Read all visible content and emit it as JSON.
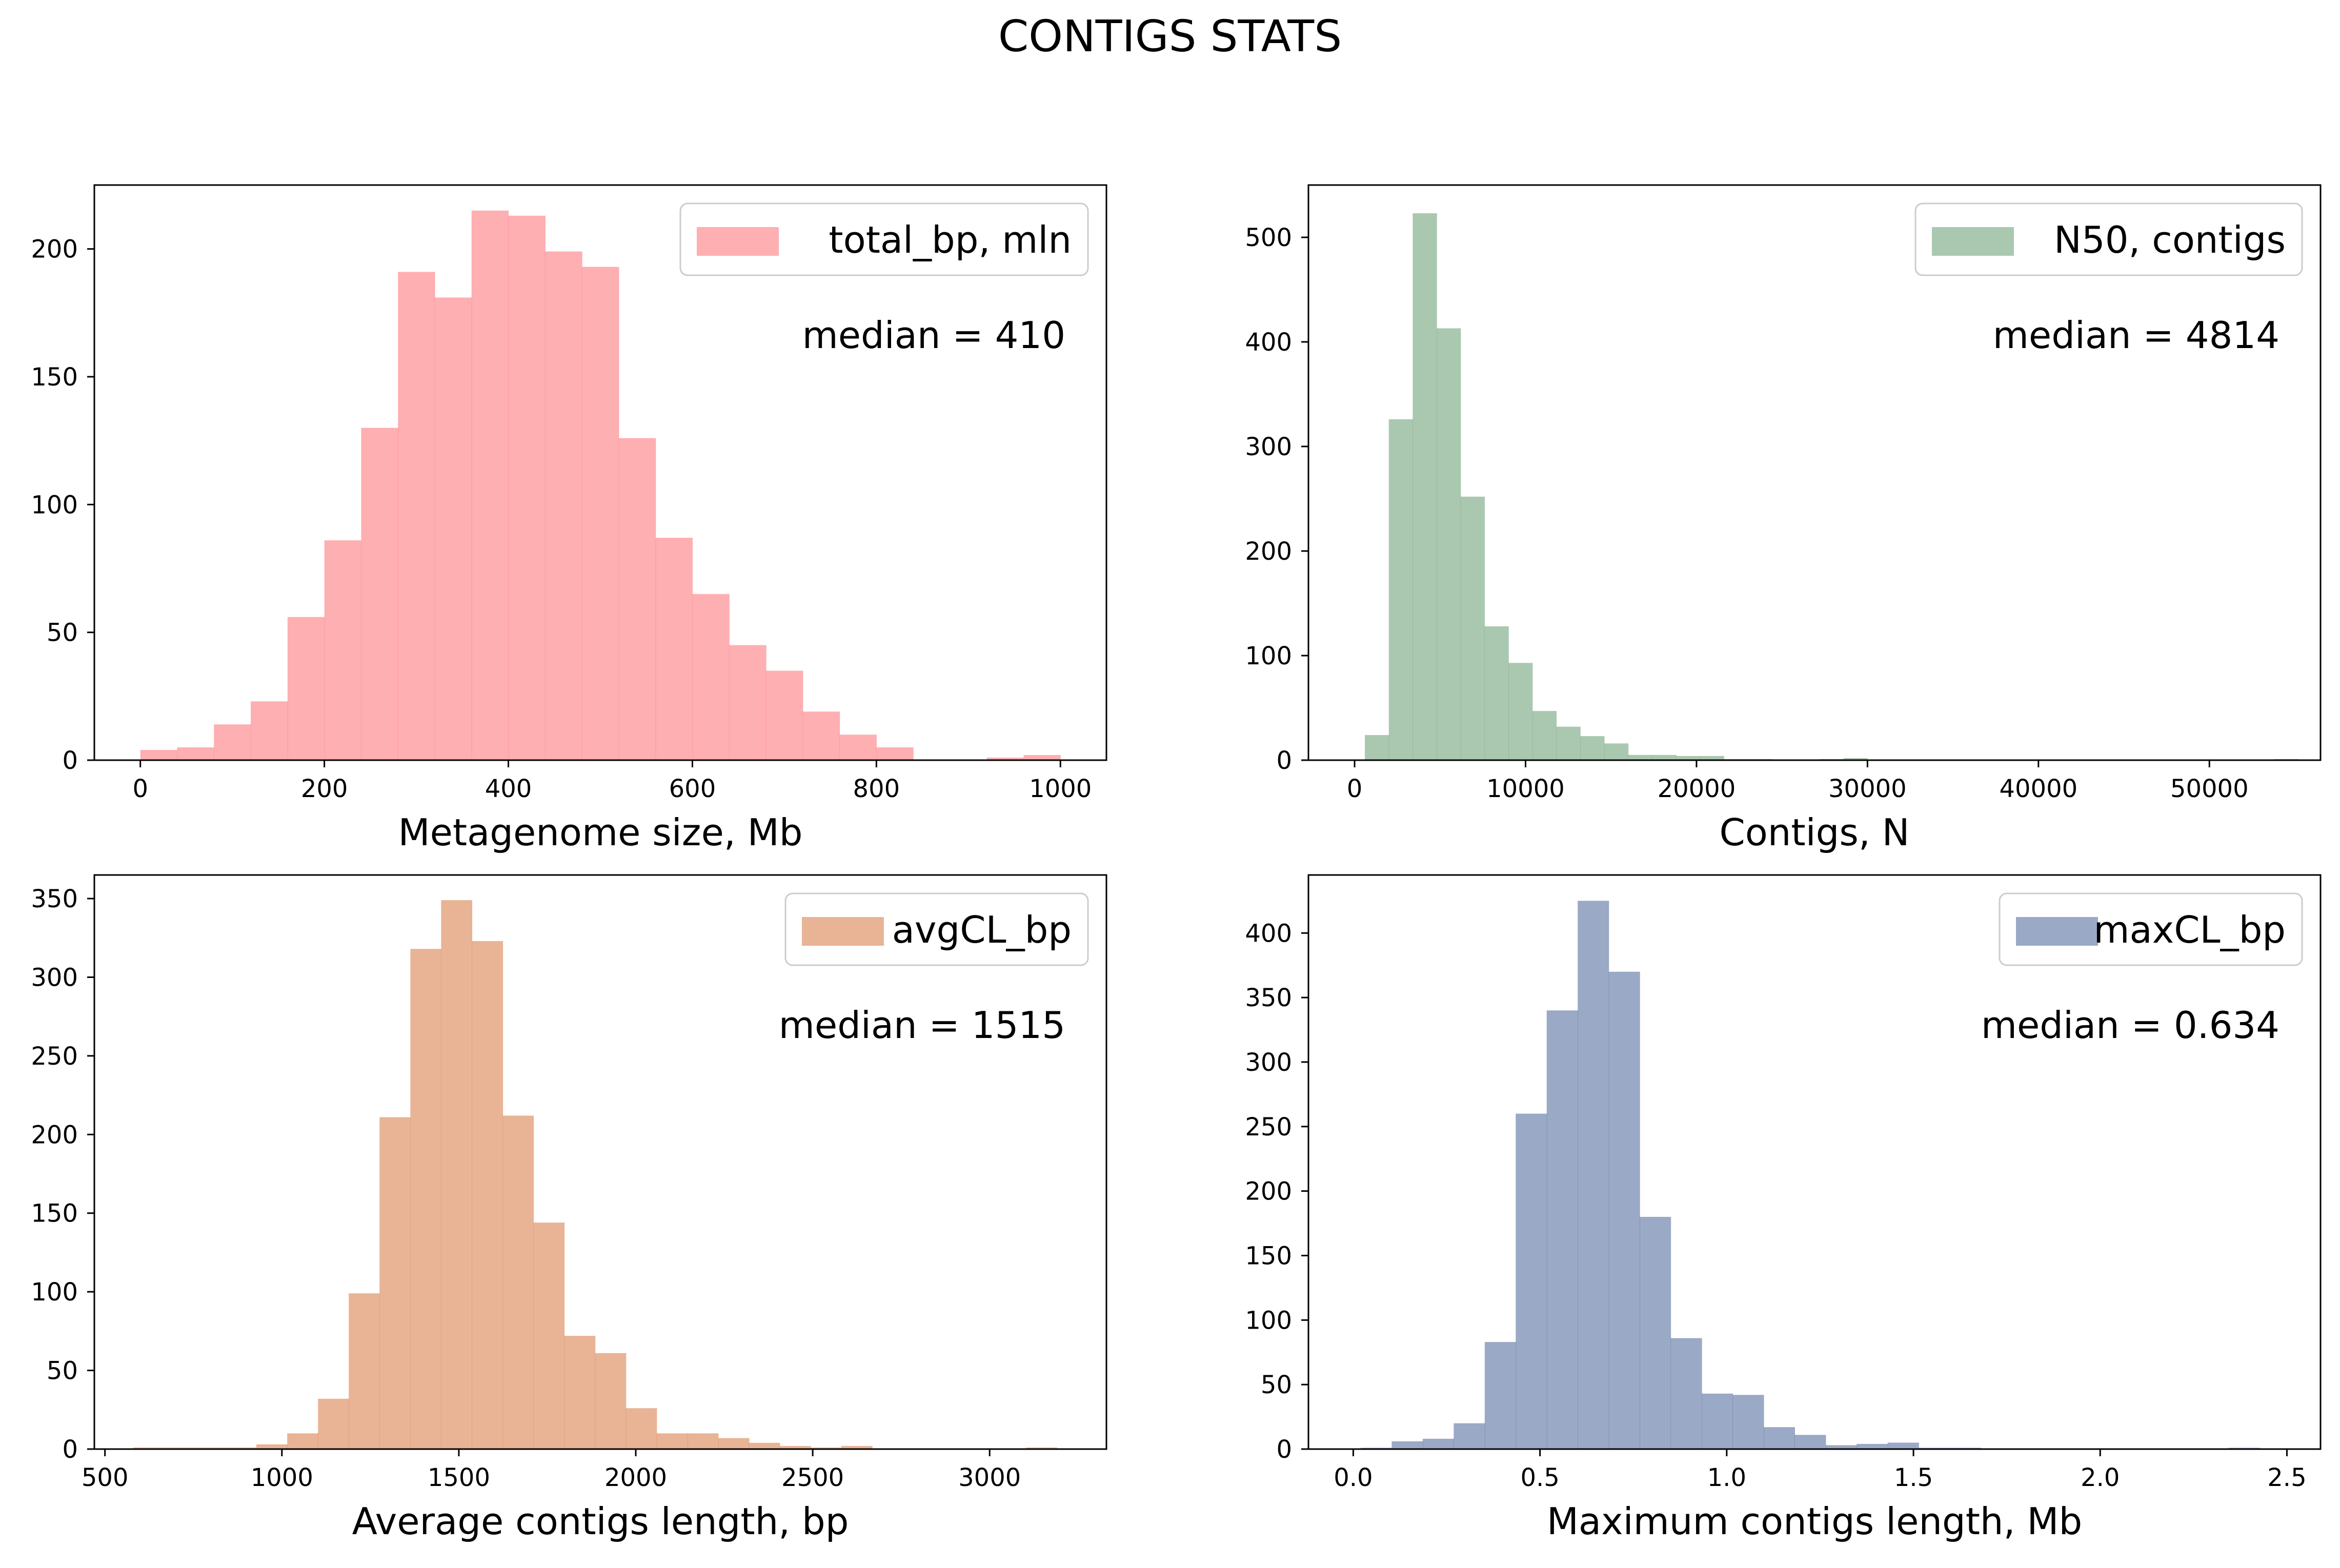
{
  "figure": {
    "title": "CONTIGS STATS"
  },
  "chart_data": [
    {
      "type": "bar",
      "id": "total_bp",
      "title": "",
      "legend": "total_bp, mln",
      "legend_position": "top-right",
      "annotation": "median = 410",
      "xlabel": "Metagenome size, Mb",
      "ylabel": "",
      "color": "#fd7a7e",
      "xlim": [
        -50,
        1050
      ],
      "ylim": [
        0,
        225
      ],
      "xticks": [
        0,
        200,
        400,
        600,
        800,
        1000
      ],
      "xtick_labels": [
        "0",
        "200",
        "400",
        "600",
        "800",
        "1000"
      ],
      "yticks": [
        0,
        50,
        100,
        150,
        200
      ],
      "ytick_labels": [
        "0",
        "50",
        "100",
        "150",
        "200"
      ],
      "bin_start": 0,
      "bin_width": 40,
      "values": [
        4,
        5,
        14,
        23,
        56,
        86,
        130,
        191,
        181,
        215,
        213,
        199,
        193,
        126,
        87,
        65,
        45,
        35,
        19,
        10,
        5,
        0,
        0,
        1,
        2
      ]
    },
    {
      "type": "bar",
      "id": "N50",
      "title": "",
      "legend": "N50, contigs",
      "legend_position": "top-right",
      "annotation": "median = 4814",
      "xlabel": "Contigs, N",
      "ylabel": "",
      "color": "#72a37c",
      "xlim": [
        -2700,
        56500
      ],
      "ylim": [
        0,
        550
      ],
      "xticks": [
        0,
        10000,
        20000,
        30000,
        40000,
        50000
      ],
      "xtick_labels": [
        "0",
        "10000",
        "20000",
        "30000",
        "40000",
        "50000"
      ],
      "yticks": [
        0,
        100,
        200,
        300,
        400,
        500
      ],
      "ytick_labels": [
        "0",
        "100",
        "200",
        "300",
        "400",
        "500"
      ],
      "bin_start": 600,
      "bin_width": 1400,
      "values": [
        24,
        326,
        523,
        413,
        252,
        128,
        93,
        47,
        32,
        23,
        16,
        5,
        5,
        4,
        4,
        1,
        1,
        0,
        0,
        1,
        2,
        0,
        0,
        0,
        0,
        0,
        0,
        0,
        0,
        0,
        0,
        0,
        0,
        0,
        0,
        0,
        0,
        0,
        1
      ]
    },
    {
      "type": "bar",
      "id": "avgCL",
      "title": "",
      "legend": "avgCL_bp",
      "legend_position": "top-right",
      "annotation": "median = 1515",
      "xlabel": "Average contigs length, bp",
      "ylabel": "",
      "color": "#d8824e",
      "xlim": [
        470,
        3330
      ],
      "ylim": [
        0,
        365
      ],
      "xticks": [
        500,
        1000,
        1500,
        2000,
        2500,
        3000
      ],
      "xtick_labels": [
        "500",
        "1000",
        "1500",
        "2000",
        "2500",
        "3000"
      ],
      "yticks": [
        0,
        50,
        100,
        150,
        200,
        250,
        300,
        350
      ],
      "ytick_labels": [
        "0",
        "50",
        "100",
        "150",
        "200",
        "250",
        "300",
        "350"
      ],
      "bin_start": 580,
      "bin_width": 87,
      "values": [
        1,
        1,
        1,
        1,
        3,
        10,
        32,
        99,
        211,
        318,
        349,
        323,
        212,
        144,
        72,
        61,
        26,
        10,
        10,
        7,
        4,
        2,
        1,
        2,
        0,
        0,
        0,
        0,
        0,
        1
      ]
    },
    {
      "type": "bar",
      "id": "maxCL",
      "title": "",
      "legend": "maxCL_bp",
      "legend_position": "top-right",
      "annotation": "median = 0.634",
      "xlabel": "Maximum contigs length, Mb",
      "ylabel": "",
      "color": "#566f9f",
      "xlim": [
        -0.12,
        2.59
      ],
      "ylim": [
        0,
        445
      ],
      "xticks": [
        0.0,
        0.5,
        1.0,
        1.5,
        2.0,
        2.5
      ],
      "xtick_labels": [
        "0.0",
        "0.5",
        "1.0",
        "1.5",
        "2.0",
        "2.5"
      ],
      "yticks": [
        0,
        50,
        100,
        150,
        200,
        250,
        300,
        350,
        400
      ],
      "ytick_labels": [
        "0",
        "50",
        "100",
        "150",
        "200",
        "250",
        "300",
        "350",
        "400"
      ],
      "bin_start": 0.02,
      "bin_width": 0.083,
      "values": [
        1,
        6,
        8,
        20,
        83,
        260,
        340,
        425,
        370,
        180,
        86,
        43,
        42,
        17,
        11,
        3,
        4,
        5,
        1,
        1,
        0,
        0,
        0,
        0,
        0,
        0,
        0,
        0,
        1
      ]
    }
  ]
}
